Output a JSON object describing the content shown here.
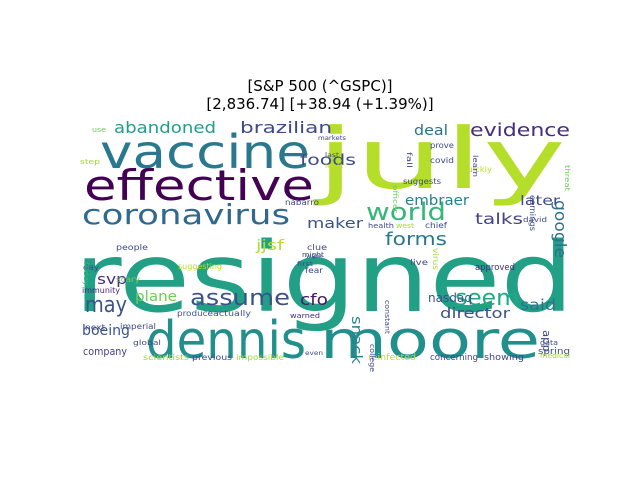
{
  "title": {
    "line1": "[S&P 500 (^GSPC)]",
    "line2": "[2,836.74]  [+38.94 (+1.39%)]"
  },
  "words": [
    {
      "text": "resigned",
      "color": "#21a085"
    },
    {
      "text": "july",
      "color": "#b5de2b"
    },
    {
      "text": "dennis",
      "color": "#21908d"
    },
    {
      "text": "moore",
      "color": "#21908d"
    },
    {
      "text": "vaccine",
      "color": "#2a788e"
    },
    {
      "text": "effective",
      "color": "#440154"
    },
    {
      "text": "coronavirus",
      "color": "#31688e"
    },
    {
      "text": "world",
      "color": "#35b779"
    },
    {
      "text": "assume",
      "color": "#3b528b"
    },
    {
      "text": "may",
      "color": "#3b528b"
    },
    {
      "text": "abandoned",
      "color": "#1f9e89"
    },
    {
      "text": "brazilian",
      "color": "#3e4989"
    },
    {
      "text": "evidence",
      "color": "#472d7b"
    },
    {
      "text": "deal",
      "color": "#2c728e"
    },
    {
      "text": "forms",
      "color": "#2a788e"
    },
    {
      "text": "seem",
      "color": "#22a884"
    },
    {
      "text": "google",
      "color": "#2e6e8e"
    },
    {
      "text": "foods",
      "color": "#3e4a89"
    },
    {
      "text": "embraer",
      "color": "#26828e"
    },
    {
      "text": "maker",
      "color": "#3b528b"
    },
    {
      "text": "talks",
      "color": "#414487"
    },
    {
      "text": "later",
      "color": "#3f4788"
    },
    {
      "text": "snack",
      "color": "#26828e"
    },
    {
      "text": "said",
      "color": "#2c728e"
    },
    {
      "text": "cfo",
      "color": "#481769"
    },
    {
      "text": "director",
      "color": "#3b528b"
    },
    {
      "text": "nasdaq",
      "color": "#3b528b"
    },
    {
      "text": "plane",
      "color": "#6ece58"
    },
    {
      "text": "svp",
      "color": "#472d7b"
    },
    {
      "text": "boeing",
      "color": "#3b528b"
    },
    {
      "text": "jjsf",
      "color": "#b5de2b"
    },
    {
      "text": "company",
      "color": "#414487"
    },
    {
      "text": "app",
      "color": "#3e4989"
    },
    {
      "text": "spring",
      "color": "#3e4989"
    },
    {
      "text": "approved",
      "color": "#482878"
    },
    {
      "text": "concerning",
      "color": "#414487"
    },
    {
      "text": "showing",
      "color": "#414487"
    },
    {
      "text": "reinfected",
      "color": "#bddf26"
    },
    {
      "text": "previous",
      "color": "#3e4989"
    },
    {
      "text": "impossible",
      "color": "#a0da39"
    },
    {
      "text": "scientists",
      "color": "#a0da39"
    },
    {
      "text": "produce",
      "color": "#3b528b"
    },
    {
      "text": "actually",
      "color": "#3b528b"
    },
    {
      "text": "warned",
      "color": "#482878"
    },
    {
      "text": "suggesting",
      "color": "#b5de2b"
    },
    {
      "text": "immunity",
      "color": "#482878"
    },
    {
      "text": "imperial",
      "color": "#3e4989"
    },
    {
      "text": "global",
      "color": "#3e4989"
    },
    {
      "text": "next",
      "color": "#3e4989"
    },
    {
      "text": "people",
      "color": "#3e4989"
    },
    {
      "text": "day",
      "color": "#3e4989"
    },
    {
      "text": "scary",
      "color": "#6ece58"
    },
    {
      "text": "friday",
      "color": "#35b779"
    },
    {
      "text": "step",
      "color": "#a0da39"
    },
    {
      "text": "use",
      "color": "#6ece58"
    },
    {
      "text": "covid",
      "color": "#3e4989"
    },
    {
      "text": "prove",
      "color": "#3e4989"
    },
    {
      "text": "quickly",
      "color": "#bddf26"
    },
    {
      "text": "earnings",
      "color": "#3e4989"
    },
    {
      "text": "suggests",
      "color": "#3e4989"
    },
    {
      "text": "david",
      "color": "#3e4989"
    },
    {
      "text": "nabarro",
      "color": "#3e4989"
    },
    {
      "text": "health",
      "color": "#3e4989"
    },
    {
      "text": "chief",
      "color": "#3e4989"
    },
    {
      "text": "clue",
      "color": "#3e4989"
    },
    {
      "text": "fear",
      "color": "#3e4989"
    },
    {
      "text": "might",
      "color": "#3e4989"
    },
    {
      "text": "live",
      "color": "#3e4989"
    },
    {
      "text": "constant",
      "color": "#3e4989"
    },
    {
      "text": "data",
      "color": "#3e4989"
    },
    {
      "text": "medical",
      "color": "#a0da39"
    },
    {
      "text": "college",
      "color": "#3e4989"
    },
    {
      "text": "learn",
      "color": "#3e4989"
    },
    {
      "text": "threat",
      "color": "#6ece58"
    },
    {
      "text": "officer",
      "color": "#6ece58"
    },
    {
      "text": "fall",
      "color": "#3e4989"
    },
    {
      "text": "markets",
      "color": "#3e4989"
    },
    {
      "text": "virus",
      "color": "#a0da39"
    },
    {
      "text": "first",
      "color": "#3e4989"
    },
    {
      "text": "west",
      "color": "#a0da39"
    },
    {
      "text": "least",
      "color": "#bddf26"
    },
    {
      "text": "even",
      "color": "#3e4989"
    },
    {
      "text": "were",
      "color": "#3e4989"
    },
    {
      "text": "last",
      "color": "#3e4989"
    }
  ]
}
